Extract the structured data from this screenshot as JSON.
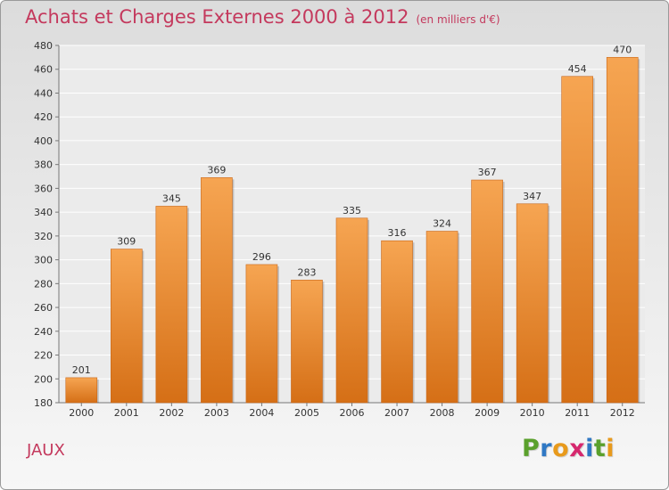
{
  "title": "Achats et Charges Externes 2000 à 2012",
  "subtitle": "(en milliers d'€)",
  "commune": "JAUX",
  "logo": {
    "letters": [
      "P",
      "r",
      "o",
      "x",
      "i",
      "t",
      "i"
    ],
    "colors": [
      "#5aa02c",
      "#2f78c4",
      "#e89a1c",
      "#d6286e",
      "#2f78c4",
      "#5aa02c",
      "#e89a1c"
    ]
  },
  "colors": {
    "bar_top": "#f6a552",
    "bar_bottom": "#d56f16",
    "title": "#c4395d"
  },
  "chart_data": {
    "type": "bar",
    "categories": [
      "2000",
      "2001",
      "2002",
      "2003",
      "2004",
      "2005",
      "2006",
      "2007",
      "2008",
      "2009",
      "2010",
      "2011",
      "2012"
    ],
    "values": [
      201,
      309,
      345,
      369,
      296,
      283,
      335,
      316,
      324,
      367,
      347,
      454,
      470
    ],
    "ylim": [
      180,
      480
    ],
    "yticks": [
      180,
      200,
      220,
      240,
      260,
      280,
      300,
      320,
      340,
      360,
      380,
      400,
      420,
      440,
      460,
      480
    ],
    "grid": true,
    "data_labels": true
  }
}
